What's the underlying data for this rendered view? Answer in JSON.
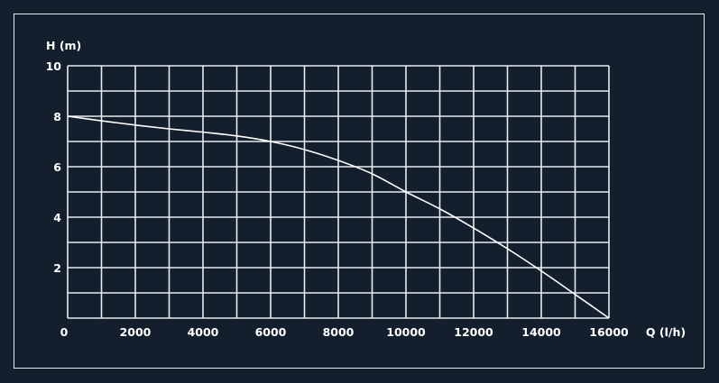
{
  "chart_data": {
    "type": "line",
    "title": "",
    "xlabel": "Q (l/h)",
    "ylabel": "H (m)",
    "xlim": [
      0,
      16000
    ],
    "ylim": [
      0,
      10
    ],
    "x_ticks": [
      0,
      2000,
      4000,
      6000,
      8000,
      10000,
      12000,
      14000,
      16000
    ],
    "y_ticks": [
      2,
      4,
      6,
      8,
      10
    ],
    "grid": true,
    "grid_x_step": 1000,
    "grid_y_step": 1,
    "series": [
      {
        "x": [
          0,
          1000,
          2000,
          3000,
          4000,
          5000,
          6000,
          7000,
          8000,
          9000,
          10000,
          11000,
          12000,
          13000,
          14000,
          15000,
          16000
        ],
        "y": [
          8.0,
          7.82,
          7.65,
          7.5,
          7.37,
          7.22,
          7.0,
          6.68,
          6.25,
          5.72,
          5.0,
          4.33,
          3.57,
          2.75,
          1.87,
          0.94,
          0.0
        ]
      }
    ],
    "colors": {
      "background": "#131f2c",
      "grid": "#e8ecf0",
      "line": "#ffffff"
    }
  }
}
